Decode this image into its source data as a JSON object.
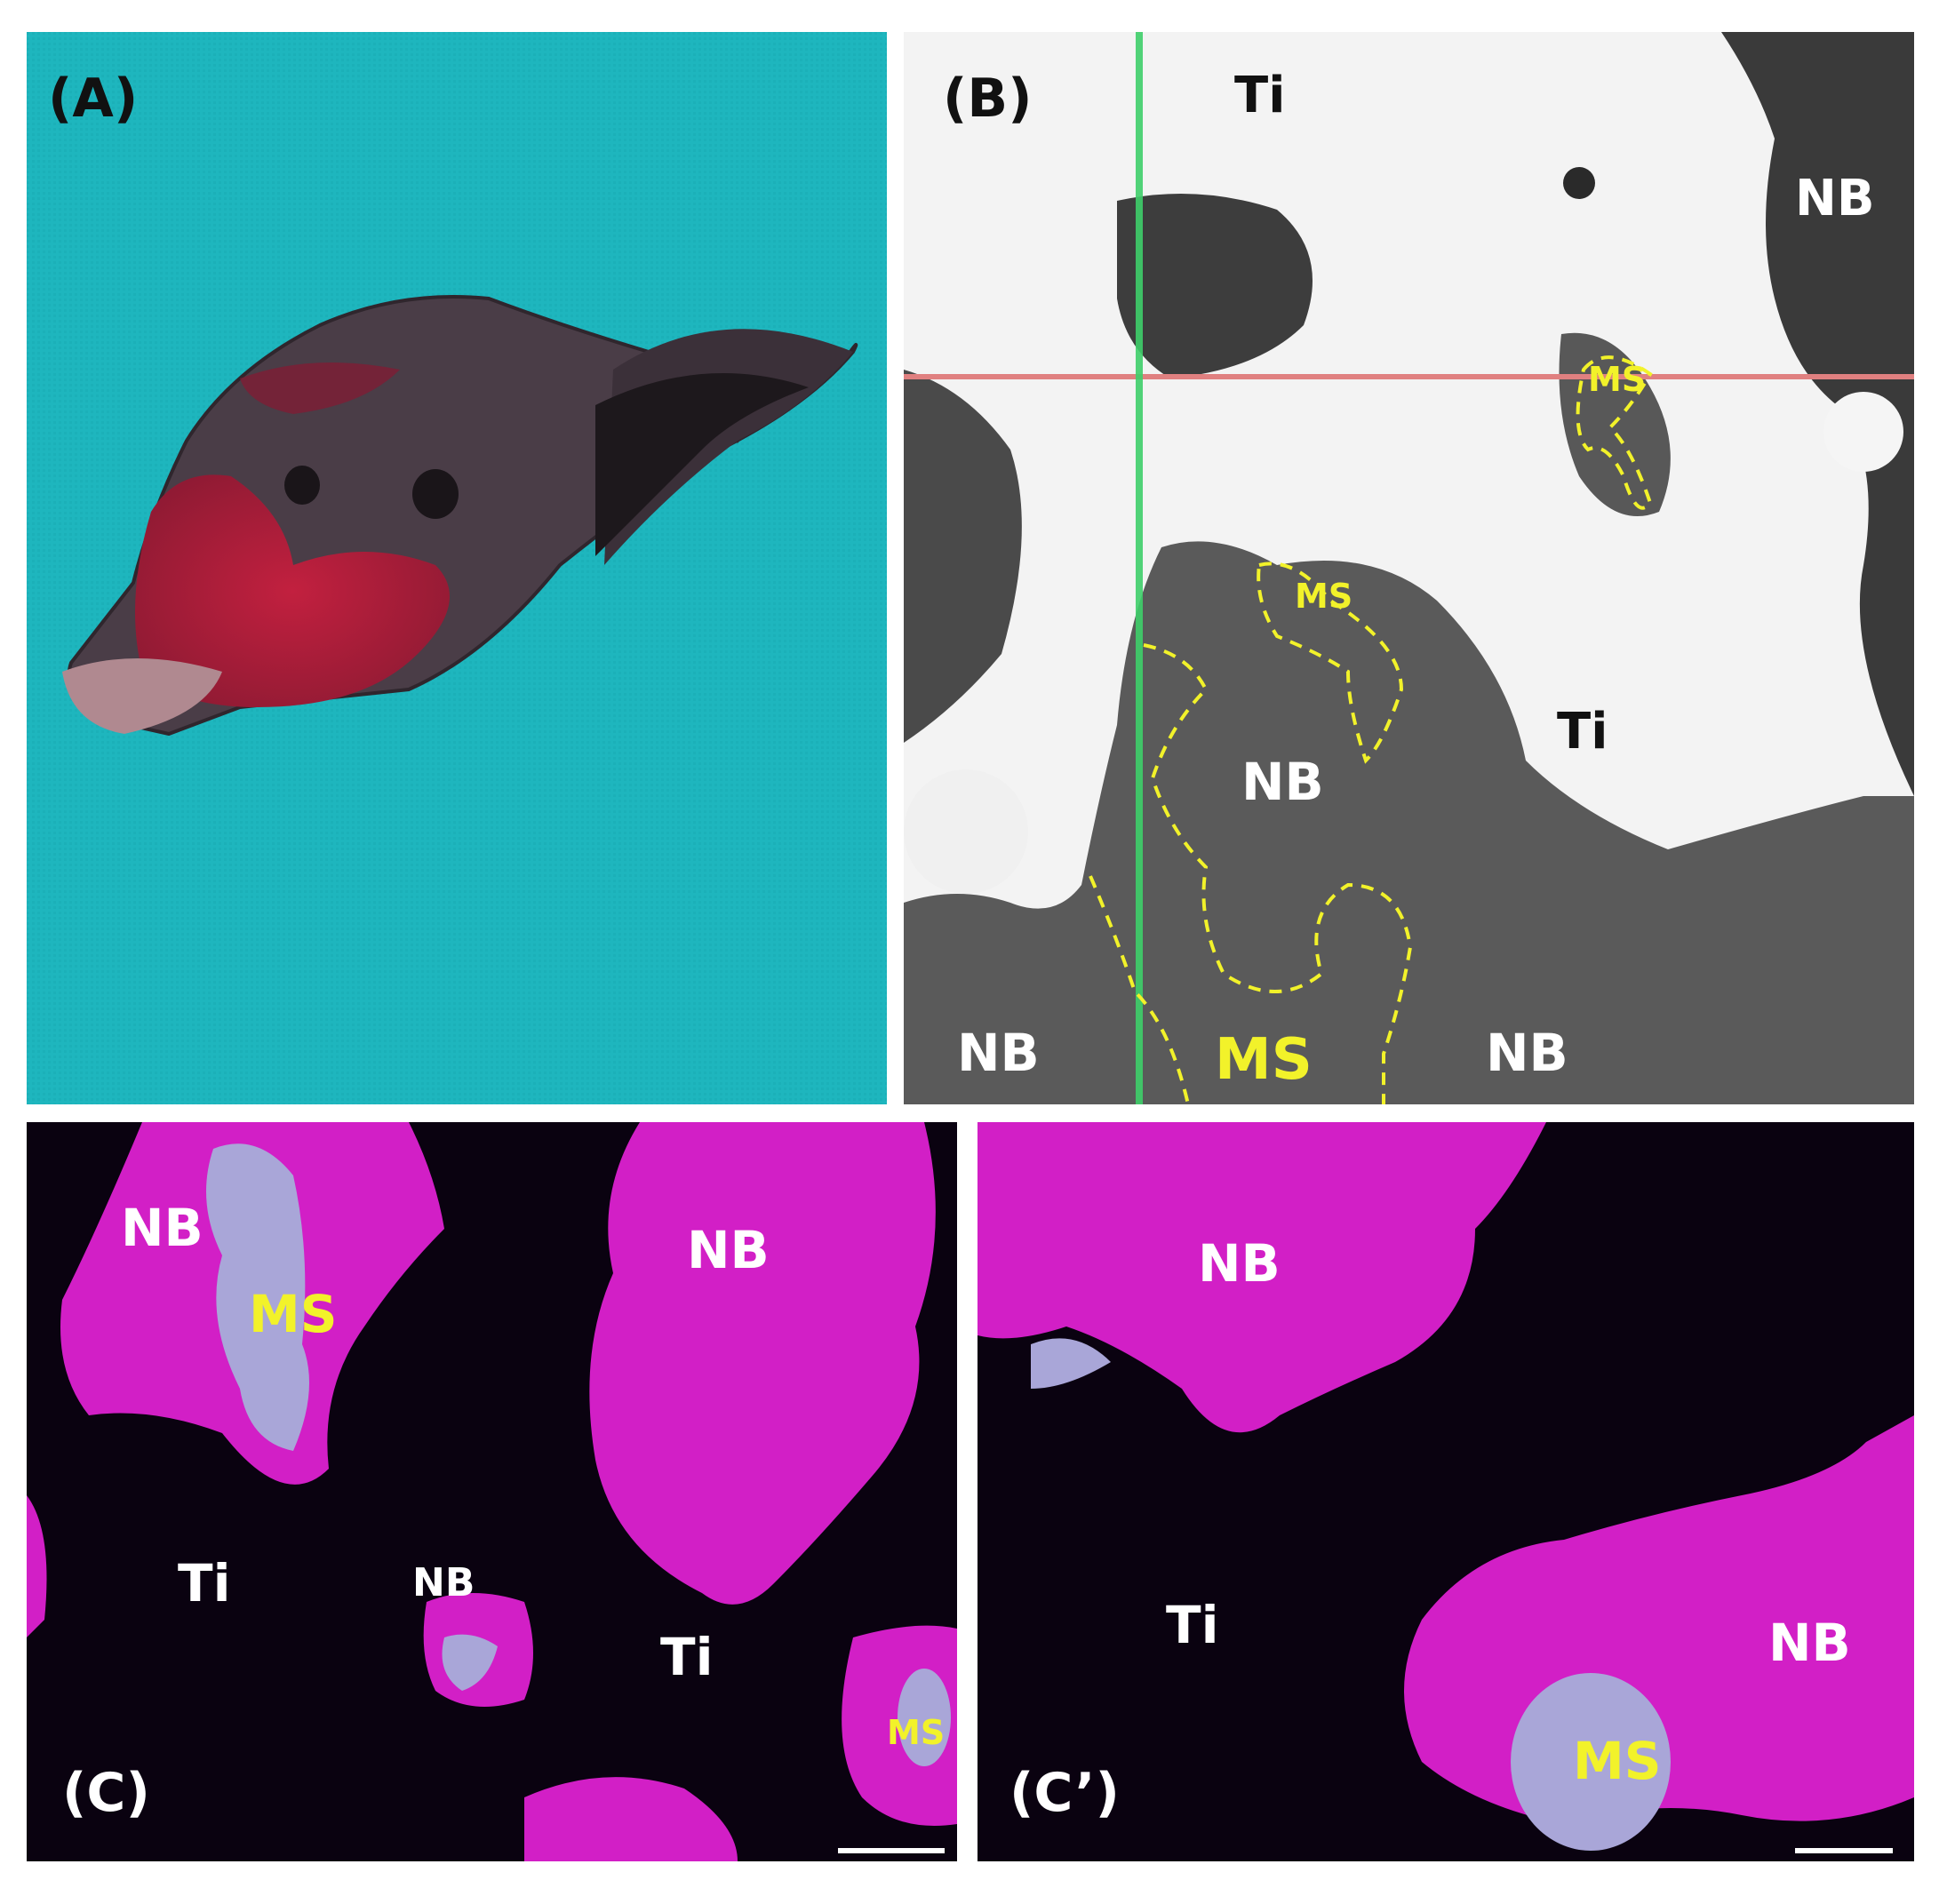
{
  "figure": {
    "panels": {
      "A": {
        "label": "(A)"
      },
      "B": {
        "label": "(B)",
        "regions": [
          "Ti",
          "NB",
          "MS",
          "MS",
          "Ti",
          "NB",
          "NB",
          "MS",
          "NB"
        ]
      },
      "C": {
        "label": "(C)",
        "regions": [
          "NB",
          "MS",
          "NB",
          "Ti",
          "NB",
          "Ti",
          "MS"
        ]
      },
      "C_prime": {
        "label": "(C’)",
        "regions": [
          "NB",
          "Ti",
          "NB",
          "MS"
        ]
      }
    },
    "colors": {
      "background_A": "#1eb6be",
      "overlay_yellow": "#f2f22a",
      "stain_magenta": "#d21fc6",
      "stain_matrix": "#a9a6d8",
      "line_red": "#e08080",
      "line_green": "#3fcf6a"
    }
  }
}
